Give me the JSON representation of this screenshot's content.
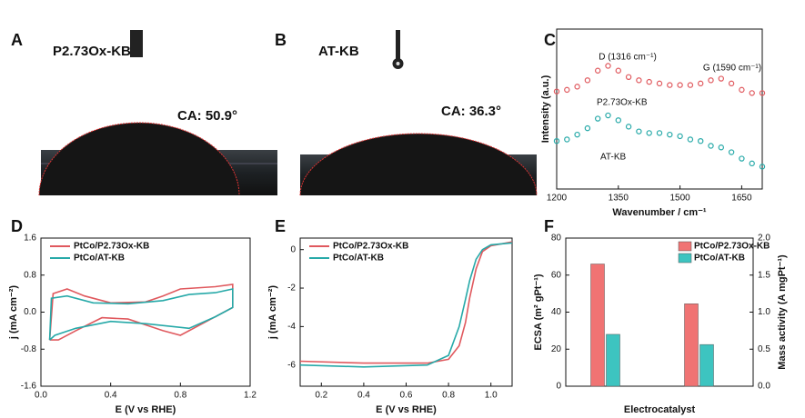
{
  "images": [
    {
      "panel": "A",
      "label": "P2.73Ox-KB",
      "contact_angle": "CA: 50.9°"
    },
    {
      "panel": "B",
      "label": "AT-KB",
      "contact_angle": "CA: 36.3°"
    }
  ],
  "chart_data": [
    {
      "type": "scatter",
      "panel": "C",
      "xlabel": "Wavenumber / cm⁻¹",
      "ylabel": "Intensity (a.u.)",
      "annotations": [
        "D (1316 cm⁻¹)",
        "G (1590 cm⁻¹)",
        "P2.73Ox-KB",
        "AT-KB"
      ],
      "xlim": [
        1200,
        1700
      ],
      "ylim": [
        0,
        10
      ],
      "xticks": [
        1200,
        1350,
        1500,
        1650
      ],
      "x": [
        1200,
        1225,
        1250,
        1275,
        1300,
        1325,
        1350,
        1375,
        1400,
        1425,
        1450,
        1475,
        1500,
        1525,
        1550,
        1575,
        1600,
        1625,
        1650,
        1675,
        1700
      ],
      "series": [
        {
          "color": "#e0595e",
          "values": [
            6.1,
            6.2,
            6.4,
            6.8,
            7.4,
            7.7,
            7.4,
            7.0,
            6.8,
            6.7,
            6.6,
            6.5,
            6.5,
            6.5,
            6.6,
            6.8,
            6.9,
            6.6,
            6.2,
            6.0,
            6.0
          ]
        },
        {
          "color": "#26a9a8",
          "values": [
            3.0,
            3.1,
            3.4,
            3.8,
            4.4,
            4.6,
            4.3,
            3.9,
            3.6,
            3.5,
            3.5,
            3.4,
            3.3,
            3.1,
            3.0,
            2.7,
            2.6,
            2.3,
            1.9,
            1.6,
            1.4
          ]
        }
      ]
    },
    {
      "type": "line",
      "panel": "D",
      "xlabel": "E (V vs RHE)",
      "ylabel": "j (mA cm⁻²)",
      "xlim": [
        0,
        1.2
      ],
      "ylim": [
        -1.6,
        1.6
      ],
      "xticks": [
        {
          "value": 0,
          "label": "0.0"
        },
        0.4,
        0.8,
        1.2
      ],
      "yticks": [
        -1.6,
        -0.8,
        {
          "value": 0,
          "label": "0.0"
        },
        0.8,
        1.6
      ],
      "legend": "upper left",
      "series": [
        {
          "name": "PtCo/P2.73Ox-KB",
          "color": "#e0595e",
          "x": [
            0.05,
            0.07,
            0.15,
            0.25,
            0.4,
            0.6,
            0.7,
            0.8,
            1.0,
            1.1,
            1.1,
            1.0,
            0.8,
            0.7,
            0.5,
            0.35,
            0.2,
            0.1,
            0.05
          ],
          "values": [
            -0.6,
            0.4,
            0.5,
            0.35,
            0.2,
            0.22,
            0.35,
            0.5,
            0.55,
            0.6,
            0.1,
            -0.1,
            -0.5,
            -0.4,
            -0.15,
            -0.12,
            -0.4,
            -0.6,
            -0.6
          ]
        },
        {
          "name": "PtCo/AT-KB",
          "color": "#26a9a8",
          "x": [
            0.05,
            0.06,
            0.15,
            0.3,
            0.5,
            0.7,
            0.85,
            1.0,
            1.1,
            1.1,
            1.0,
            0.85,
            0.6,
            0.4,
            0.2,
            0.08,
            0.05
          ],
          "values": [
            -0.6,
            0.3,
            0.35,
            0.2,
            0.18,
            0.25,
            0.38,
            0.42,
            0.5,
            0.1,
            -0.1,
            -0.35,
            -0.25,
            -0.2,
            -0.35,
            -0.5,
            -0.6
          ]
        }
      ]
    },
    {
      "type": "line",
      "panel": "E",
      "xlabel": "E (V vs RHE)",
      "ylabel": "j (mA cm⁻²)",
      "xlim": [
        0.1,
        1.1
      ],
      "ylim": [
        -7.1,
        0.6
      ],
      "xticks": [
        0.2,
        0.4,
        0.6,
        0.8,
        {
          "value": 1,
          "label": "1.0"
        }
      ],
      "yticks": [
        -6,
        -4,
        -2,
        0
      ],
      "legend": "upper left",
      "series": [
        {
          "name": "PtCo/P2.73Ox-KB",
          "color": "#e0595e",
          "x": [
            0.1,
            0.4,
            0.7,
            0.8,
            0.85,
            0.88,
            0.9,
            0.93,
            0.96,
            1.0,
            1.1
          ],
          "values": [
            -5.8,
            -5.9,
            -5.9,
            -5.7,
            -5.0,
            -3.8,
            -2.5,
            -1.0,
            -0.1,
            0.2,
            0.4
          ]
        },
        {
          "name": "PtCo/AT-KB",
          "color": "#26a9a8",
          "x": [
            0.1,
            0.4,
            0.7,
            0.8,
            0.85,
            0.88,
            0.9,
            0.93,
            0.96,
            1.0,
            1.1
          ],
          "values": [
            -6.0,
            -6.1,
            -6.0,
            -5.5,
            -4.0,
            -2.6,
            -1.6,
            -0.5,
            0.0,
            0.25,
            0.35
          ]
        }
      ]
    },
    {
      "type": "bar",
      "panel": "F",
      "xlabel": "Electrocatalyst",
      "ylabel": "ECSA (m² gPt⁻¹)",
      "y2label": "Mass activity (A mgPt⁻¹)",
      "categories": [
        null,
        null
      ],
      "ylim": [
        0,
        80
      ],
      "yticks": [
        0,
        20,
        40,
        60,
        80
      ],
      "y2lim": [
        0,
        2
      ],
      "y2ticks": [
        {
          "value": 0,
          "label": "0.0"
        },
        0.5,
        {
          "value": 1,
          "label": "1.0"
        },
        1.5,
        {
          "value": 2,
          "label": "2.0"
        }
      ],
      "legend": "upper right",
      "series": [
        {
          "name": "PtCo/P2.73Ox-KB",
          "color": "#f07373",
          "values": [
            66,
            44.5
          ]
        },
        {
          "name": "PtCo/AT-KB",
          "color": "#3dc4c0",
          "values": [
            28,
            22.5
          ]
        }
      ]
    }
  ]
}
